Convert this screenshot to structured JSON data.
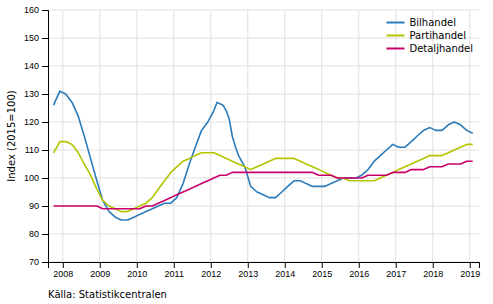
{
  "chart_data": {
    "type": "line",
    "y_label": "Index (2015=100)",
    "annotations": [
      "Källa: Statistikcentralen"
    ],
    "xlim": [
      2007.6,
      2019.25
    ],
    "xticks": [
      2008,
      2009,
      2010,
      2011,
      2012,
      2013,
      2014,
      2015,
      2016,
      2017,
      2018,
      2019
    ],
    "ylim": [
      70,
      160
    ],
    "yticks": [
      70,
      80,
      90,
      100,
      110,
      120,
      130,
      140,
      150,
      160
    ],
    "grid": true,
    "legend": "upper right",
    "series": [
      {
        "name": "Bilhandel",
        "color": "#2b7bba",
        "x": [
          2007.75,
          2007.92,
          2008.08,
          2008.25,
          2008.42,
          2008.58,
          2008.75,
          2008.92,
          2009.08,
          2009.25,
          2009.42,
          2009.58,
          2009.75,
          2009.92,
          2010.08,
          2010.25,
          2010.42,
          2010.58,
          2010.75,
          2010.92,
          2011.08,
          2011.25,
          2011.42,
          2011.58,
          2011.75,
          2011.92,
          2012.0,
          2012.08,
          2012.17,
          2012.33,
          2012.42,
          2012.5,
          2012.58,
          2012.67,
          2012.75,
          2012.92,
          2013.08,
          2013.25,
          2013.42,
          2013.58,
          2013.75,
          2013.92,
          2014.08,
          2014.25,
          2014.42,
          2014.58,
          2014.75,
          2014.92,
          2015.08,
          2015.25,
          2015.42,
          2015.58,
          2015.75,
          2015.92,
          2016.08,
          2016.25,
          2016.42,
          2016.58,
          2016.75,
          2016.92,
          2017.08,
          2017.25,
          2017.42,
          2017.58,
          2017.75,
          2017.92,
          2018.08,
          2018.25,
          2018.42,
          2018.58,
          2018.75,
          2018.92,
          2019.08
        ],
        "values": [
          126,
          131,
          130,
          127,
          122,
          115,
          107,
          99,
          92,
          88,
          86,
          85,
          85,
          86,
          87,
          88,
          89,
          90,
          91,
          91,
          93,
          98,
          105,
          111,
          117,
          120,
          122,
          124,
          127,
          126,
          124,
          121,
          115,
          111,
          108,
          104,
          97,
          95,
          94,
          93,
          93,
          95,
          97,
          99,
          99,
          98,
          97,
          97,
          97,
          98,
          99,
          100,
          100,
          100,
          101,
          103,
          106,
          108,
          110,
          112,
          111,
          111,
          113,
          115,
          117,
          118,
          117,
          117,
          119,
          120,
          119,
          117,
          116
        ]
      },
      {
        "name": "Partihandel",
        "color": "#b5c400",
        "x": [
          2007.75,
          2007.92,
          2008.08,
          2008.25,
          2008.42,
          2008.58,
          2008.75,
          2008.92,
          2009.08,
          2009.25,
          2009.42,
          2009.58,
          2009.75,
          2009.92,
          2010.08,
          2010.25,
          2010.42,
          2010.58,
          2010.75,
          2010.92,
          2011.08,
          2011.25,
          2011.42,
          2011.58,
          2011.75,
          2011.92,
          2012.08,
          2012.25,
          2012.42,
          2012.58,
          2012.75,
          2012.92,
          2013.08,
          2013.25,
          2013.42,
          2013.58,
          2013.75,
          2013.92,
          2014.08,
          2014.25,
          2014.42,
          2014.58,
          2014.75,
          2014.92,
          2015.08,
          2015.25,
          2015.42,
          2015.58,
          2015.75,
          2015.92,
          2016.08,
          2016.25,
          2016.42,
          2016.58,
          2016.75,
          2016.92,
          2017.08,
          2017.25,
          2017.42,
          2017.58,
          2017.75,
          2017.92,
          2018.08,
          2018.25,
          2018.42,
          2018.58,
          2018.75,
          2018.92,
          2019.08
        ],
        "values": [
          109,
          113,
          113,
          112,
          109,
          105,
          101,
          96,
          92,
          90,
          89,
          88,
          88,
          89,
          90,
          91,
          93,
          96,
          99,
          102,
          104,
          106,
          107,
          108,
          109,
          109,
          109,
          108,
          107,
          106,
          105,
          104,
          103,
          104,
          105,
          106,
          107,
          107,
          107,
          107,
          106,
          105,
          104,
          103,
          102,
          101,
          100,
          100,
          99,
          99,
          99,
          99,
          99,
          100,
          101,
          102,
          103,
          104,
          105,
          106,
          107,
          108,
          108,
          108,
          109,
          110,
          111,
          112,
          112
        ]
      },
      {
        "name": "Detaljhandel",
        "color": "#c9006b",
        "x": [
          2007.75,
          2007.92,
          2008.08,
          2008.25,
          2008.42,
          2008.58,
          2008.75,
          2008.92,
          2009.08,
          2009.25,
          2009.42,
          2009.58,
          2009.75,
          2009.92,
          2010.08,
          2010.25,
          2010.42,
          2010.58,
          2010.75,
          2010.92,
          2011.08,
          2011.25,
          2011.42,
          2011.58,
          2011.75,
          2011.92,
          2012.08,
          2012.25,
          2012.42,
          2012.58,
          2012.75,
          2012.92,
          2013.08,
          2013.25,
          2013.42,
          2013.58,
          2013.75,
          2013.92,
          2014.08,
          2014.25,
          2014.42,
          2014.58,
          2014.75,
          2014.92,
          2015.08,
          2015.25,
          2015.42,
          2015.58,
          2015.75,
          2015.92,
          2016.08,
          2016.25,
          2016.42,
          2016.58,
          2016.75,
          2016.92,
          2017.08,
          2017.25,
          2017.42,
          2017.58,
          2017.75,
          2017.92,
          2018.08,
          2018.25,
          2018.42,
          2018.58,
          2018.75,
          2018.92,
          2019.08
        ],
        "values": [
          90,
          90,
          90,
          90,
          90,
          90,
          90,
          90,
          89,
          89,
          89,
          89,
          89,
          89,
          89,
          90,
          90,
          91,
          92,
          93,
          94,
          95,
          96,
          97,
          98,
          99,
          100,
          101,
          101,
          102,
          102,
          102,
          102,
          102,
          102,
          102,
          102,
          102,
          102,
          102,
          102,
          102,
          102,
          101,
          101,
          101,
          100,
          100,
          100,
          100,
          100,
          101,
          101,
          101,
          101,
          102,
          102,
          102,
          103,
          103,
          103,
          104,
          104,
          104,
          105,
          105,
          105,
          106,
          106
        ]
      }
    ]
  }
}
